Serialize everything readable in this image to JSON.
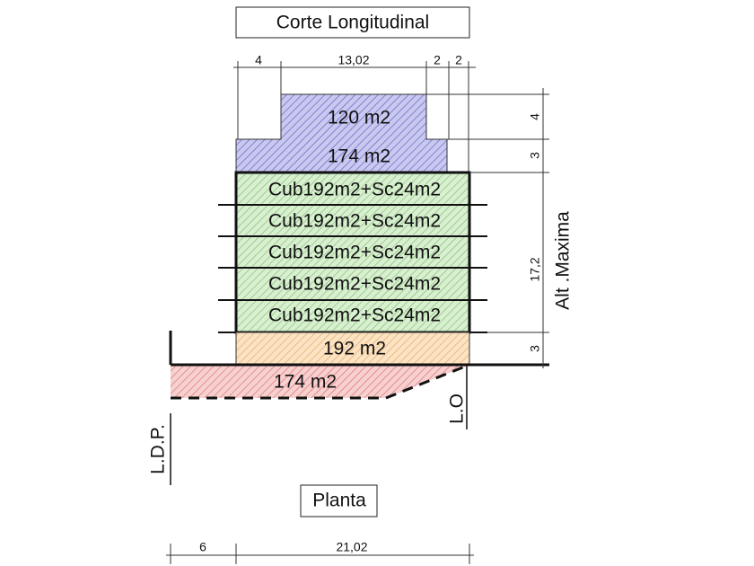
{
  "title": "Corte Longitudinal",
  "dimensions_top": [
    "4",
    "13,02",
    "2",
    "2"
  ],
  "upper_floors": [
    "120 m2",
    "174 m2"
  ],
  "floors": [
    "Cub192m2+Sc24m2",
    "Cub192m2+Sc24m2",
    "Cub192m2+Sc24m2",
    "Cub192m2+Sc24m2",
    "Cub192m2+Sc24m2"
  ],
  "ground_floor": "192 m2",
  "basement": "174 m2",
  "right_dims": [
    "4",
    "3",
    "17,2",
    "3"
  ],
  "height_label": "Alt .Maxima",
  "labels": {
    "ldp": "L.D.P.",
    "lo": "L.O"
  },
  "plan_title": "Planta",
  "dimensions_bottom": [
    "6",
    "21,02"
  ]
}
